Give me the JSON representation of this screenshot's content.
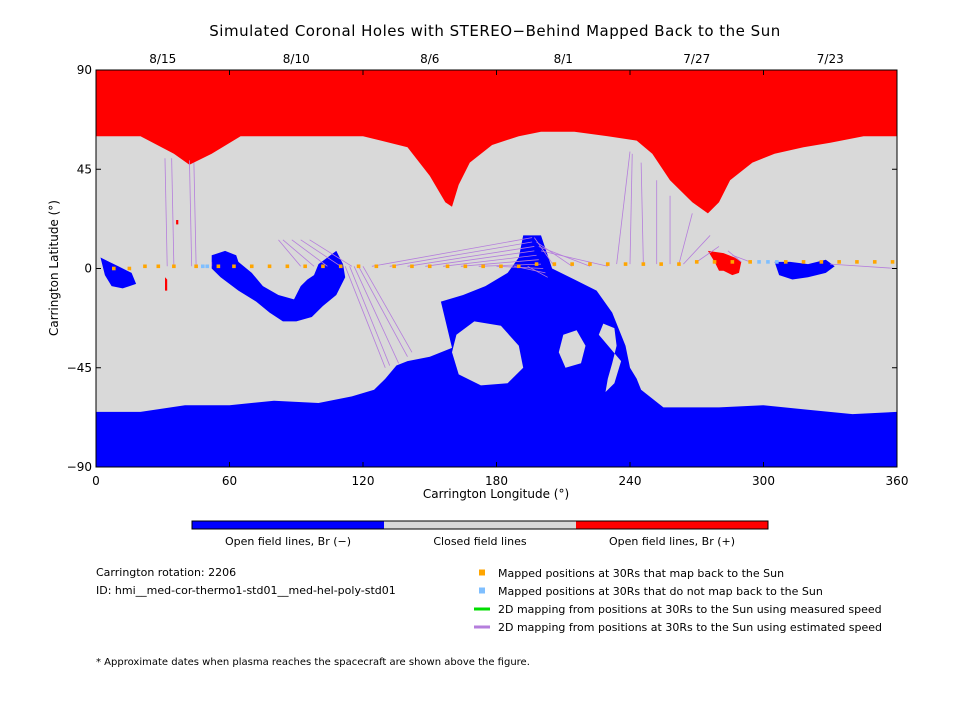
{
  "chart_data": {
    "type": "map",
    "title": "Simulated Coronal Holes with STEREO−Behind Mapped Back to the Sun",
    "xlabel": "Carrington Longitude (°)",
    "ylabel": "Carrington Latitude (°)",
    "xlim": [
      0,
      360
    ],
    "ylim": [
      -90,
      90
    ],
    "x_ticks": [
      "0",
      "60",
      "120",
      "180",
      "240",
      "300",
      "360"
    ],
    "y_ticks": [
      "90",
      "45",
      "0",
      "−45",
      "−90"
    ],
    "x_tick_values": [
      0,
      60,
      120,
      180,
      240,
      300,
      360
    ],
    "y_tick_values": [
      90,
      45,
      0,
      -45,
      -90
    ],
    "top_axis": {
      "labels": [
        "8/15",
        "8/10",
        "8/6",
        "8/1",
        "7/27",
        "7/23"
      ],
      "longitudes": [
        30,
        90,
        150,
        210,
        270,
        330
      ]
    },
    "colorbar": {
      "segments": [
        {
          "label": "Open field lines, Br (−)",
          "color": "#0000ff"
        },
        {
          "label": "Closed field lines",
          "color": "#d9d9d9"
        },
        {
          "label": "Open field lines, Br (+)",
          "color": "#ff0000"
        }
      ]
    },
    "info": {
      "rotation": "Carrington rotation: 2206",
      "id": "ID: hmi__med-cor-thermo1-std01__med-hel-poly-std01"
    },
    "legend": {
      "placement": "bottom-right",
      "items": [
        {
          "label": "Mapped positions at 30Rs that map back to the Sun",
          "color": "#ffa500",
          "kind": "square"
        },
        {
          "label": "Mapped positions at 30Rs that do not map back to the Sun",
          "color": "#7fbfff",
          "kind": "square"
        },
        {
          "label": "2D mapping from positions at 30Rs to the Sun using measured speed",
          "color": "#00dd00",
          "kind": "line"
        },
        {
          "label": "2D mapping from positions at 30Rs to the Sun using estimated speed",
          "color": "#b57edc",
          "kind": "line"
        }
      ]
    },
    "footnote": "* Approximate dates when plasma reaches the spacecraft are shown above the figure.",
    "colors": {
      "closed": "#d9d9d9",
      "negative": "#0000ff",
      "positive": "#ff0000",
      "mapped": "#ffa500",
      "unmapped": "#7fbfff",
      "estimated": "#b57edc"
    },
    "regions": {
      "north_positive": [
        [
          0,
          90
        ],
        [
          360,
          90
        ],
        [
          360,
          60
        ],
        [
          345,
          60
        ],
        [
          330,
          57
        ],
        [
          318,
          55
        ],
        [
          305,
          52
        ],
        [
          295,
          48
        ],
        [
          285,
          40
        ],
        [
          280,
          30
        ],
        [
          275,
          25
        ],
        [
          268,
          30
        ],
        [
          258,
          40
        ],
        [
          250,
          52
        ],
        [
          243,
          58
        ],
        [
          230,
          60
        ],
        [
          215,
          62
        ],
        [
          200,
          62
        ],
        [
          190,
          60
        ],
        [
          178,
          56
        ],
        [
          168,
          48
        ],
        [
          163,
          38
        ],
        [
          160,
          28
        ],
        [
          157,
          30
        ],
        [
          150,
          42
        ],
        [
          140,
          55
        ],
        [
          120,
          60
        ],
        [
          100,
          60
        ],
        [
          80,
          60
        ],
        [
          65,
          60
        ],
        [
          52,
          52
        ],
        [
          42,
          47
        ],
        [
          35,
          52
        ],
        [
          20,
          60
        ],
        [
          0,
          60
        ]
      ],
      "south_negative": [
        [
          0,
          -65
        ],
        [
          20,
          -65
        ],
        [
          40,
          -62
        ],
        [
          60,
          -62
        ],
        [
          80,
          -60
        ],
        [
          100,
          -61
        ],
        [
          115,
          -58
        ],
        [
          125,
          -55
        ],
        [
          130,
          -50
        ],
        [
          135,
          -44
        ],
        [
          140,
          -42
        ],
        [
          150,
          -40
        ],
        [
          160,
          -36
        ],
        [
          155,
          -15
        ],
        [
          165,
          -12
        ],
        [
          175,
          -8
        ],
        [
          185,
          -2
        ],
        [
          190,
          5
        ],
        [
          192,
          15
        ],
        [
          200,
          15
        ],
        [
          205,
          0
        ],
        [
          215,
          -5
        ],
        [
          225,
          -10
        ],
        [
          232,
          -20
        ],
        [
          238,
          -35
        ],
        [
          240,
          -45
        ],
        [
          243,
          -50
        ],
        [
          245,
          -55
        ],
        [
          255,
          -63
        ],
        [
          280,
          -63
        ],
        [
          300,
          -62
        ],
        [
          320,
          -64
        ],
        [
          340,
          -66
        ],
        [
          360,
          -65
        ],
        [
          360,
          -90
        ],
        [
          0,
          -90
        ]
      ],
      "south_holes": [
        [
          [
            160,
            -38
          ],
          [
            162,
            -30
          ],
          [
            170,
            -24
          ],
          [
            182,
            -26
          ],
          [
            190,
            -35
          ],
          [
            192,
            -45
          ],
          [
            185,
            -52
          ],
          [
            173,
            -53
          ],
          [
            163,
            -48
          ]
        ],
        [
          [
            208,
            -38
          ],
          [
            210,
            -30
          ],
          [
            216,
            -28
          ],
          [
            220,
            -35
          ],
          [
            218,
            -43
          ],
          [
            211,
            -45
          ]
        ],
        [
          [
            226,
            -30
          ],
          [
            228,
            -25
          ],
          [
            233,
            -27
          ],
          [
            234,
            -35
          ],
          [
            232,
            -43
          ],
          [
            230,
            -50
          ],
          [
            229,
            -56
          ],
          [
            233,
            -52
          ],
          [
            236,
            -42
          ]
        ]
      ],
      "negative_patches": [
        [
          [
            2,
            5
          ],
          [
            6,
            3
          ],
          [
            10,
            1
          ],
          [
            16,
            -2
          ],
          [
            18,
            -7
          ],
          [
            12,
            -9
          ],
          [
            7,
            -8
          ],
          [
            4,
            -3
          ]
        ],
        [
          [
            52,
            6
          ],
          [
            58,
            8
          ],
          [
            63,
            6
          ],
          [
            64,
            3
          ],
          [
            70,
            -2
          ],
          [
            75,
            -8
          ],
          [
            82,
            -12
          ],
          [
            89,
            -14
          ],
          [
            92,
            -8
          ],
          [
            95,
            -5
          ],
          [
            98,
            -3
          ],
          [
            100,
            2
          ],
          [
            104,
            5
          ],
          [
            108,
            8
          ],
          [
            111,
            2
          ],
          [
            112,
            -4
          ],
          [
            108,
            -12
          ],
          [
            102,
            -17
          ],
          [
            97,
            -22
          ],
          [
            90,
            -24
          ],
          [
            84,
            -24
          ],
          [
            78,
            -20
          ],
          [
            72,
            -15
          ],
          [
            64,
            -10
          ],
          [
            56,
            -4
          ],
          [
            52,
            0
          ]
        ],
        [
          [
            305,
            3
          ],
          [
            312,
            3
          ],
          [
            320,
            2
          ],
          [
            328,
            4
          ],
          [
            332,
            1
          ],
          [
            328,
            -2
          ],
          [
            320,
            -4
          ],
          [
            313,
            -5
          ],
          [
            307,
            -3
          ]
        ]
      ],
      "positive_patches": [
        [
          [
            275,
            8
          ],
          [
            282,
            7
          ],
          [
            287,
            5
          ],
          [
            290,
            3
          ],
          [
            289,
            -2
          ],
          [
            286,
            -3
          ],
          [
            282,
            -1
          ],
          [
            280,
            -1
          ],
          [
            278,
            3
          ]
        ],
        [
          [
            31,
            -4
          ],
          [
            32,
            -5
          ],
          [
            32,
            -10
          ],
          [
            31,
            -10
          ]
        ],
        [
          [
            36,
            22
          ],
          [
            37,
            22
          ],
          [
            37,
            20
          ],
          [
            36,
            20
          ]
        ]
      ]
    },
    "mapped_track": {
      "orange": [
        [
          8,
          0
        ],
        [
          15,
          0
        ],
        [
          22,
          1
        ],
        [
          28,
          1
        ],
        [
          35,
          1
        ],
        [
          45,
          1
        ],
        [
          55,
          1
        ],
        [
          62,
          1
        ],
        [
          70,
          1
        ],
        [
          78,
          1
        ],
        [
          86,
          1
        ],
        [
          94,
          1
        ],
        [
          102,
          1
        ],
        [
          110,
          1
        ],
        [
          118,
          1
        ],
        [
          126,
          1
        ],
        [
          134,
          1
        ],
        [
          142,
          1
        ],
        [
          150,
          1
        ],
        [
          158,
          1
        ],
        [
          166,
          1
        ],
        [
          174,
          1
        ],
        [
          182,
          1
        ],
        [
          190,
          1
        ],
        [
          198,
          2
        ],
        [
          206,
          2
        ],
        [
          214,
          2
        ],
        [
          222,
          2
        ],
        [
          230,
          2
        ],
        [
          238,
          2
        ],
        [
          246,
          2
        ],
        [
          254,
          2
        ],
        [
          262,
          2
        ],
        [
          270,
          3
        ],
        [
          278,
          3
        ],
        [
          286,
          3
        ],
        [
          294,
          3
        ],
        [
          310,
          3
        ],
        [
          318,
          3
        ],
        [
          326,
          3
        ],
        [
          334,
          3
        ],
        [
          342,
          3
        ],
        [
          350,
          3
        ],
        [
          358,
          3
        ]
      ],
      "blue": [
        [
          48,
          1
        ],
        [
          50,
          1
        ],
        [
          298,
          3
        ],
        [
          302,
          3
        ],
        [
          306,
          3
        ]
      ]
    },
    "estimated_mapping_lines": [
      [
        [
          31,
          50
        ],
        [
          32,
          1
        ]
      ],
      [
        [
          34,
          50
        ],
        [
          35,
          1
        ]
      ],
      [
        [
          42,
          49
        ],
        [
          43,
          1
        ]
      ],
      [
        [
          44,
          48
        ],
        [
          45,
          1
        ]
      ],
      [
        [
          82,
          13
        ],
        [
          92,
          1
        ]
      ],
      [
        [
          84,
          13
        ],
        [
          98,
          1
        ]
      ],
      [
        [
          88,
          13
        ],
        [
          104,
          1
        ]
      ],
      [
        [
          92,
          13
        ],
        [
          110,
          1
        ]
      ],
      [
        [
          96,
          13
        ],
        [
          115,
          1
        ]
      ],
      [
        [
          52,
          3
        ],
        [
          52,
          1
        ]
      ],
      [
        [
          130,
          -45
        ],
        [
          112,
          1
        ]
      ],
      [
        [
          132,
          -44
        ],
        [
          114,
          1
        ]
      ],
      [
        [
          136,
          -43
        ],
        [
          116,
          1
        ]
      ],
      [
        [
          140,
          -40
        ],
        [
          118,
          1
        ]
      ],
      [
        [
          142,
          -38
        ],
        [
          120,
          1
        ]
      ],
      [
        [
          196,
          14
        ],
        [
          124,
          1
        ]
      ],
      [
        [
          196,
          12
        ],
        [
          132,
          1
        ]
      ],
      [
        [
          197,
          10
        ],
        [
          140,
          1
        ]
      ],
      [
        [
          197,
          8
        ],
        [
          148,
          1
        ]
      ],
      [
        [
          198,
          6
        ],
        [
          156,
          1
        ]
      ],
      [
        [
          199,
          4
        ],
        [
          164,
          1
        ]
      ],
      [
        [
          200,
          2
        ],
        [
          172,
          1
        ]
      ],
      [
        [
          201,
          0
        ],
        [
          180,
          1
        ]
      ],
      [
        [
          202,
          -2
        ],
        [
          188,
          1
        ]
      ],
      [
        [
          203,
          -4
        ],
        [
          194,
          1
        ]
      ],
      [
        [
          197,
          14
        ],
        [
          206,
          1
        ]
      ],
      [
        [
          198,
          12
        ],
        [
          214,
          1
        ]
      ],
      [
        [
          199,
          10
        ],
        [
          222,
          1
        ]
      ],
      [
        [
          200,
          8
        ],
        [
          230,
          1
        ]
      ],
      [
        [
          240,
          53
        ],
        [
          234,
          2
        ]
      ],
      [
        [
          241,
          52
        ],
        [
          240,
          2
        ]
      ],
      [
        [
          245,
          48
        ],
        [
          246,
          2
        ]
      ],
      [
        [
          252,
          40
        ],
        [
          252,
          2
        ]
      ],
      [
        [
          258,
          33
        ],
        [
          258,
          2
        ]
      ],
      [
        [
          268,
          25
        ],
        [
          262,
          2
        ]
      ],
      [
        [
          276,
          15
        ],
        [
          264,
          2
        ]
      ],
      [
        [
          280,
          10
        ],
        [
          270,
          3
        ]
      ],
      [
        [
          284,
          8
        ],
        [
          290,
          3
        ]
      ],
      [
        [
          286,
          6
        ],
        [
          294,
          3
        ]
      ],
      [
        [
          330,
          2
        ],
        [
          360,
          0
        ]
      ]
    ]
  }
}
